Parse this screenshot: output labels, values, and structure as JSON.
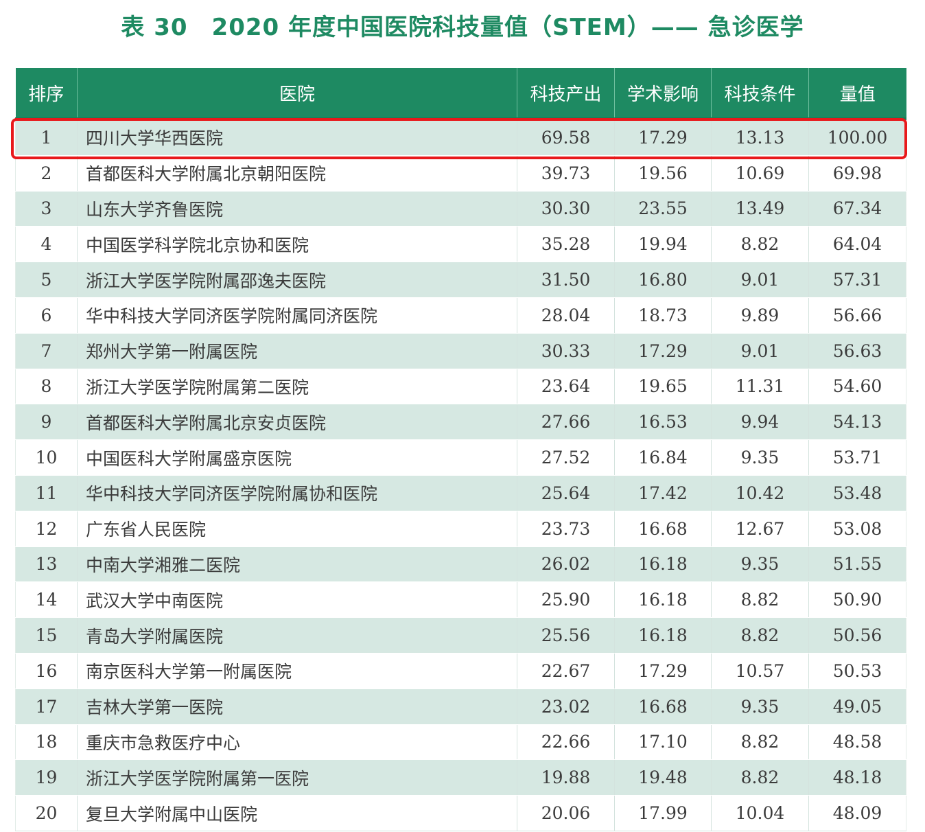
{
  "title": "表 30　2020 年度中国医院科技量值（STEM）—— 急诊医学",
  "colors": {
    "header_bg": "#1e8a62",
    "title": "#1e8a62",
    "stripe": "#d6e8e2",
    "highlight": "#e8191b"
  },
  "table": {
    "headers": [
      "排序",
      "医院",
      "科技产出",
      "学术影响",
      "科技条件",
      "量值"
    ],
    "rows": [
      [
        "1",
        "四川大学华西医院",
        "69.58",
        "17.29",
        "13.13",
        "100.00"
      ],
      [
        "2",
        "首都医科大学附属北京朝阳医院",
        "39.73",
        "19.56",
        "10.69",
        "69.98"
      ],
      [
        "3",
        "山东大学齐鲁医院",
        "30.30",
        "23.55",
        "13.49",
        "67.34"
      ],
      [
        "4",
        "中国医学科学院北京协和医院",
        "35.28",
        "19.94",
        "8.82",
        "64.04"
      ],
      [
        "5",
        "浙江大学医学院附属邵逸夫医院",
        "31.50",
        "16.80",
        "9.01",
        "57.31"
      ],
      [
        "6",
        "华中科技大学同济医学院附属同济医院",
        "28.04",
        "18.73",
        "9.89",
        "56.66"
      ],
      [
        "7",
        "郑州大学第一附属医院",
        "30.33",
        "17.29",
        "9.01",
        "56.63"
      ],
      [
        "8",
        "浙江大学医学院附属第二医院",
        "23.64",
        "19.65",
        "11.31",
        "54.60"
      ],
      [
        "9",
        "首都医科大学附属北京安贞医院",
        "27.66",
        "16.53",
        "9.94",
        "54.13"
      ],
      [
        "10",
        "中国医科大学附属盛京医院",
        "27.52",
        "16.84",
        "9.35",
        "53.71"
      ],
      [
        "11",
        "华中科技大学同济医学院附属协和医院",
        "25.64",
        "17.42",
        "10.42",
        "53.48"
      ],
      [
        "12",
        "广东省人民医院",
        "23.73",
        "16.68",
        "12.67",
        "53.08"
      ],
      [
        "13",
        "中南大学湘雅二医院",
        "26.02",
        "16.18",
        "9.35",
        "51.55"
      ],
      [
        "14",
        "武汉大学中南医院",
        "25.90",
        "16.18",
        "8.82",
        "50.90"
      ],
      [
        "15",
        "青岛大学附属医院",
        "25.56",
        "16.18",
        "8.82",
        "50.56"
      ],
      [
        "16",
        "南京医科大学第一附属医院",
        "22.67",
        "17.29",
        "10.57",
        "50.53"
      ],
      [
        "17",
        "吉林大学第一医院",
        "23.02",
        "16.68",
        "9.35",
        "49.05"
      ],
      [
        "18",
        "重庆市急救医疗中心",
        "22.66",
        "17.10",
        "8.82",
        "48.58"
      ],
      [
        "19",
        "浙江大学医学院附属第一医院",
        "19.88",
        "19.48",
        "8.82",
        "48.18"
      ],
      [
        "20",
        "复旦大学附属中山医院",
        "20.06",
        "17.99",
        "10.04",
        "48.09"
      ]
    ]
  }
}
